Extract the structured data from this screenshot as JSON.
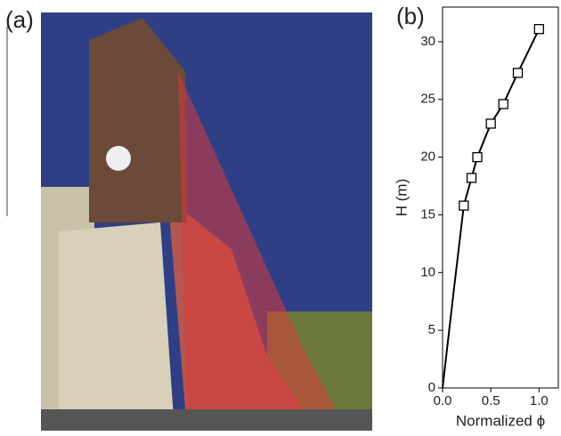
{
  "photo_label": "(a)",
  "chart_data": {
    "type": "line",
    "title": "(b)",
    "xlabel": "Normalized ϕ",
    "ylabel": "H (m)",
    "xlim": [
      0,
      1.2
    ],
    "ylim": [
      0,
      33
    ],
    "xticks": [
      {
        "value": 0,
        "label": "0.0"
      },
      {
        "value": 0.5,
        "label": "0.5"
      },
      {
        "value": 1,
        "label": "1.0"
      }
    ],
    "yticks": [
      0,
      5,
      10,
      15,
      20,
      25,
      30
    ],
    "series": [
      {
        "color": "#000000",
        "marker": false,
        "x": [
          0,
          0.11,
          0.22,
          0.3,
          0.36,
          0.5,
          0.63,
          0.78,
          1.0
        ],
        "values": [
          0,
          8,
          15.8,
          18.2,
          20.0,
          22.9,
          24.6,
          27.3,
          31.1
        ]
      },
      {
        "color": "#000000",
        "marker": "square",
        "line": false,
        "x": [
          0.22,
          0.3,
          0.36,
          0.5,
          0.63,
          0.78,
          1.0
        ],
        "values": [
          15.8,
          18.2,
          20.0,
          22.9,
          24.6,
          27.3,
          31.1
        ]
      }
    ]
  }
}
